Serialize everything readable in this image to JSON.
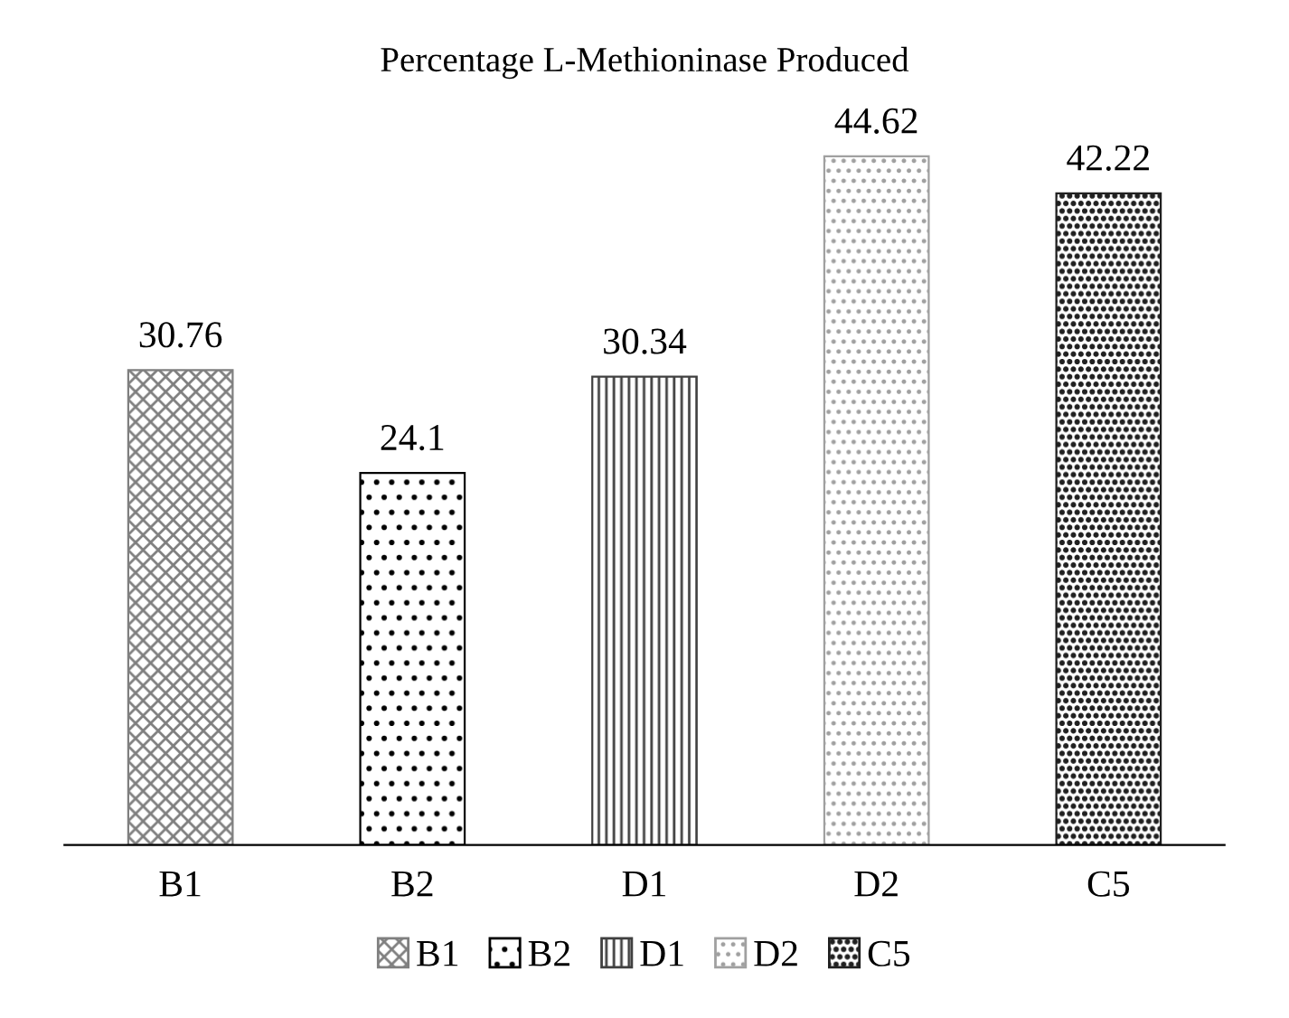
{
  "chart_data": {
    "type": "bar",
    "title": "Percentage L-Methioninase Produced",
    "categories": [
      "B1",
      "B2",
      "D1",
      "D2",
      "C5"
    ],
    "series": [
      {
        "name": "B1",
        "color": "#7f7f7f",
        "values": [
          30.76,
          null,
          null,
          null,
          null
        ]
      },
      {
        "name": "B2",
        "color": "#000000",
        "values": [
          null,
          24.1,
          null,
          null,
          null
        ]
      },
      {
        "name": "D1",
        "color": "#404040",
        "values": [
          null,
          null,
          30.34,
          null,
          null
        ]
      },
      {
        "name": "D2",
        "color": "#a0a0a0",
        "values": [
          null,
          null,
          null,
          44.62,
          null
        ]
      },
      {
        "name": "C5",
        "color": "#202020",
        "values": [
          null,
          null,
          null,
          null,
          42.22
        ]
      }
    ],
    "data_labels": true,
    "legend": "bottom",
    "grid": false
  }
}
